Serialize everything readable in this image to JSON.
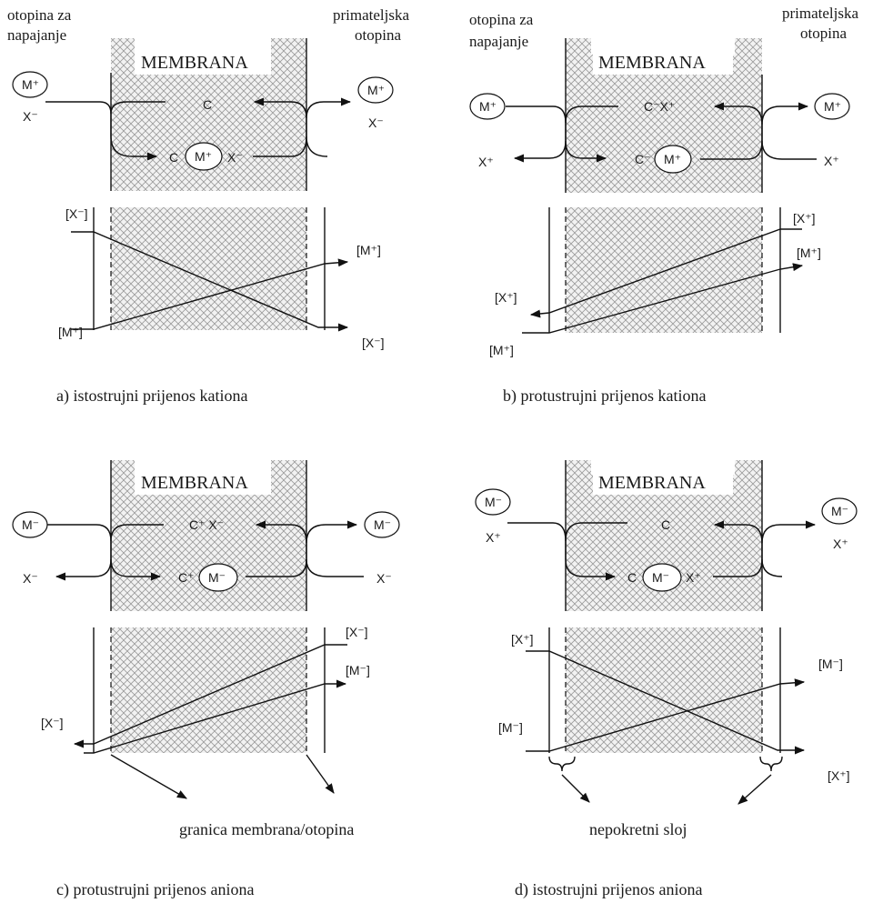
{
  "labels": {
    "feed_a": [
      "otopina za",
      "napajanje"
    ],
    "receiving_a": [
      "primateljska",
      "otopina"
    ],
    "feed_b": [
      "otopina za",
      "napajanje"
    ],
    "receiving_b": [
      "primateljska",
      "otopina"
    ],
    "membrane": "MEMBRANA",
    "boundary_note": "granica membrana/otopina",
    "stagnant_note": "nepokretni sloj"
  },
  "panels": [
    {
      "id": "a",
      "caption": "a) istostrujni prijenos kationa",
      "left_ion": "M⁺",
      "left_counter": "X⁻",
      "right_ion": "M⁺",
      "right_counter": "X⁻",
      "top_carrier": "C",
      "bottom_carrier": "C",
      "bottom_ion": "M⁺",
      "bottom_counter": "X⁻",
      "graph_labels": {
        "left_top": "[X⁻]",
        "left_bottom": "[M⁺]",
        "right_top": "[M⁺]",
        "right_bottom": "[X⁻]"
      }
    },
    {
      "id": "b",
      "caption": "b) protustrujni prijenos kationa",
      "left_ion": "M⁺",
      "left_counter": "X⁺",
      "right_ion": "M⁺",
      "right_counter": "X⁺",
      "top_carrier": "C⁻X⁺",
      "bottom_carrier": "C⁻",
      "bottom_ion": "M⁺",
      "graph_labels": {
        "right_top": "[X⁺]",
        "right_mid": "[M⁺]",
        "left_mid": "[X⁺]",
        "left_bottom": "[M⁺]"
      }
    },
    {
      "id": "c",
      "caption": "c) protustrujni prijenos aniona",
      "left_ion": "M⁻",
      "left_counter": "X⁻",
      "right_ion": "M⁻",
      "right_counter": "X⁻",
      "top_carrier": "C⁺ X⁻",
      "bottom_carrier": "C⁺",
      "bottom_ion": "M⁻",
      "graph_labels": {
        "right_top": "[X⁻]",
        "right_mid": "[M⁻]",
        "left_mid": "[X⁻]"
      }
    },
    {
      "id": "d",
      "caption": "d) istostrujni prijenos aniona",
      "left_ion": "M⁻",
      "left_counter": "X⁺",
      "right_ion": "M⁻",
      "right_counter": "X⁺",
      "top_carrier": "C",
      "bottom_carrier": "C",
      "bottom_ion": "M⁻",
      "bottom_counter": "X⁺",
      "graph_labels": {
        "left_top": "[X⁺]",
        "left_bottom": "[M⁻]",
        "right_top": "[M⁻]",
        "right_bottom": "[X⁺]"
      }
    }
  ]
}
